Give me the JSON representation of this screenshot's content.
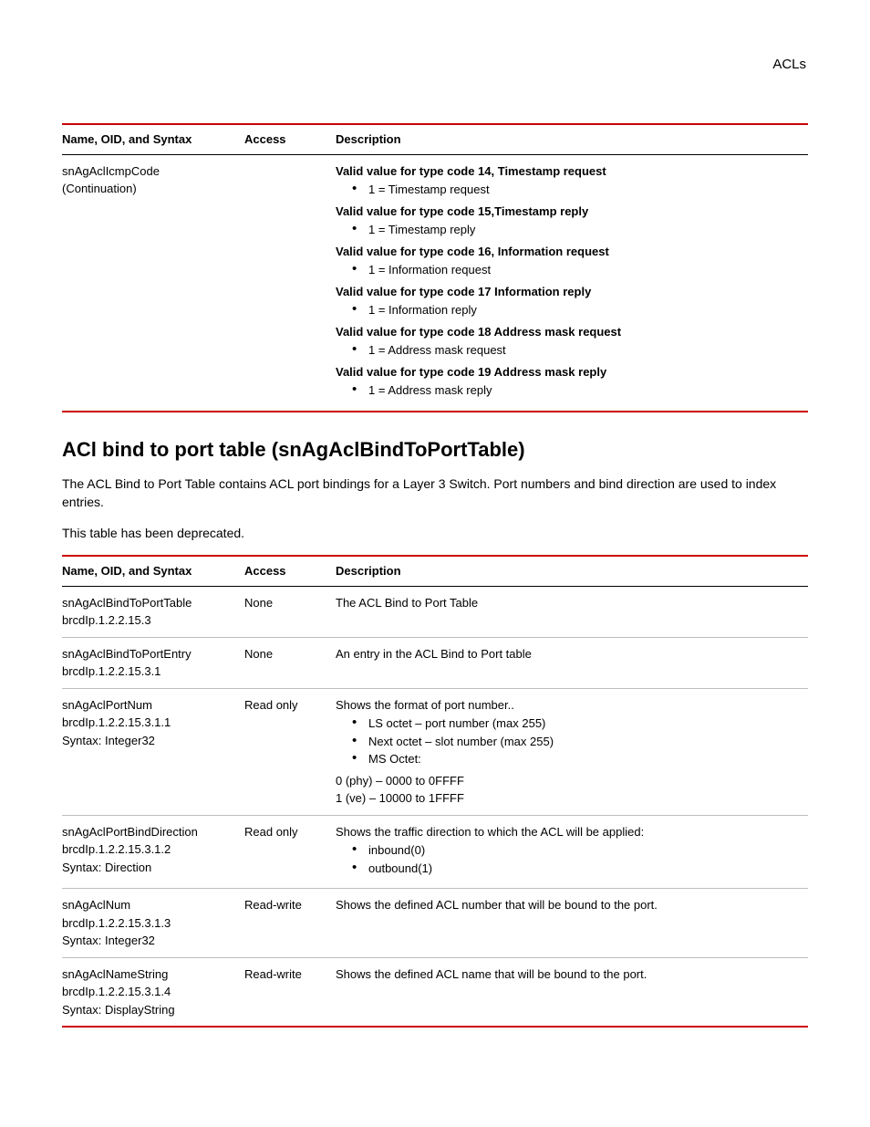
{
  "header": {
    "right": "ACLs"
  },
  "table1": {
    "headers": {
      "name": "Name, OID, and Syntax",
      "access": "Access",
      "desc": "Description"
    },
    "row": {
      "name_line1": "snAgAclIcmpCode",
      "name_line2": "(Continuation)",
      "access": "",
      "groups": [
        {
          "title": "Valid value for type code 14, Timestamp request",
          "item": "1 = Timestamp request"
        },
        {
          "title": "Valid value for type code 15,Timestamp reply",
          "item": "1 = Timestamp reply"
        },
        {
          "title": "Valid value for type code 16, Information request",
          "item": "1 = Information request"
        },
        {
          "title": "Valid value for type code 17 Information reply",
          "item": "1 = Information reply"
        },
        {
          "title": "Valid value for type code 18 Address mask request",
          "item": "1 = Address mask request"
        },
        {
          "title": "Valid value for type code 19 Address mask reply",
          "item": "1 = Address mask reply"
        }
      ]
    }
  },
  "section": {
    "title": "ACl bind to port table (snAgAclBindToPortTable)",
    "para1": "The ACL Bind to Port Table contains ACL port bindings for a Layer 3 Switch. Port numbers and bind direction are used to index entries.",
    "para2": "This table has been deprecated."
  },
  "table2": {
    "headers": {
      "name": "Name, OID, and Syntax",
      "access": "Access",
      "desc": "Description"
    },
    "rows": [
      {
        "name": [
          "snAgAclBindToPortTable",
          "brcdIp.1.2.2.15.3"
        ],
        "access": "None",
        "desc_text": "The ACL Bind to Port Table",
        "bullets": [],
        "tail": []
      },
      {
        "name": [
          "snAgAclBindToPortEntry",
          "brcdIp.1.2.2.15.3.1"
        ],
        "access": "None",
        "desc_text": "An entry in the ACL Bind to Port table",
        "bullets": [],
        "tail": []
      },
      {
        "name": [
          "snAgAclPortNum",
          "brcdIp.1.2.2.15.3.1.1",
          "Syntax: Integer32"
        ],
        "access": "Read only",
        "desc_text": "Shows the format of port number..",
        "bullets": [
          "LS octet – port number (max 255)",
          "Next octet – slot number (max 255)",
          "MS Octet:"
        ],
        "tail": [
          "0 (phy) – 0000 to 0FFFF",
          "1 (ve) – 10000 to 1FFFF"
        ]
      },
      {
        "name": [
          "snAgAclPortBindDirection",
          "brcdIp.1.2.2.15.3.1.2",
          "Syntax: Direction"
        ],
        "access": "Read only",
        "desc_text": "Shows the traffic direction to which the ACL will be applied:",
        "bullets": [
          "inbound(0)",
          "outbound(1)"
        ],
        "tail": []
      },
      {
        "name": [
          "snAgAclNum",
          "brcdIp.1.2.2.15.3.1.3",
          "Syntax: Integer32"
        ],
        "access": "Read-write",
        "desc_text": "Shows the defined ACL number that will be bound to the port.",
        "bullets": [],
        "tail": []
      },
      {
        "name": [
          "snAgAclNameString",
          "brcdIp.1.2.2.15.3.1.4",
          "Syntax: DisplayString"
        ],
        "access": "Read-write",
        "desc_text": "Shows the defined ACL name that will be bound to the port.",
        "bullets": [],
        "tail": []
      }
    ]
  }
}
